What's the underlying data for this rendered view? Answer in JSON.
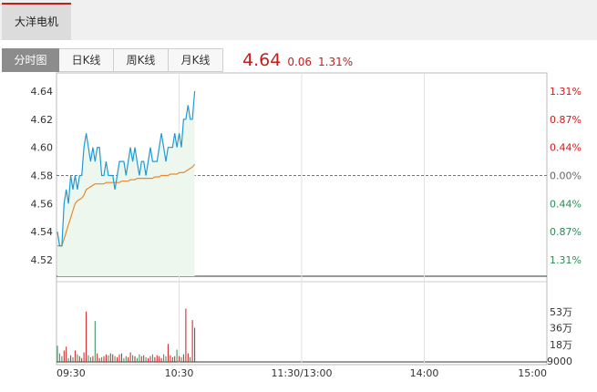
{
  "header": {
    "stock_name": "大洋电机"
  },
  "tabs": [
    {
      "label": "分时图",
      "active": true
    },
    {
      "label": "日K线",
      "active": false
    },
    {
      "label": "周K线",
      "active": false
    },
    {
      "label": "月K线",
      "active": false
    }
  ],
  "quote": {
    "price": "4.64",
    "change": "0.06",
    "change_pct": "1.31%"
  },
  "colors": {
    "up": "#c81c1c",
    "down": "#2e8b57",
    "price_line": "#1f9bd4",
    "avg_line": "#e8882c",
    "fill": "#eef7ee"
  },
  "chart_data": {
    "type": "line",
    "prev_close": 4.58,
    "time_labels": [
      "09:30",
      "10:30",
      "11:30/13:00",
      "14:00",
      "15:00"
    ],
    "price_ticks": [
      "4.64",
      "4.62",
      "4.60",
      "4.58",
      "4.56",
      "4.54",
      "4.52"
    ],
    "pct_ticks": [
      "1.31%",
      "0.87%",
      "0.44%",
      "0.00%",
      "0.44%",
      "0.87%",
      "1.31%"
    ],
    "price_range": [
      4.52,
      4.64
    ],
    "volume_ticks": [
      "53万",
      "36万",
      "18万",
      "9000"
    ],
    "volume_range": [
      0,
      710000
    ],
    "total_minutes": 240,
    "series": [
      {
        "name": "price",
        "values": [
          4.54,
          4.53,
          4.53,
          4.56,
          4.57,
          4.56,
          4.58,
          4.57,
          4.58,
          4.57,
          4.58,
          4.58,
          4.6,
          4.61,
          4.6,
          4.59,
          4.6,
          4.59,
          4.6,
          4.6,
          4.58,
          4.58,
          4.59,
          4.58,
          4.58,
          4.58,
          4.57,
          4.58,
          4.59,
          4.59,
          4.59,
          4.58,
          4.59,
          4.6,
          4.59,
          4.6,
          4.59,
          4.58,
          4.59,
          4.59,
          4.58,
          4.59,
          4.6,
          4.59,
          4.59,
          4.59,
          4.6,
          4.61,
          4.6,
          4.59,
          4.6,
          4.6,
          4.6,
          4.61,
          4.6,
          4.61,
          4.6,
          4.62,
          4.62,
          4.63,
          4.62,
          4.62,
          4.64
        ]
      },
      {
        "name": "avg",
        "values": [
          4.53,
          4.53,
          4.53,
          4.535,
          4.54,
          4.545,
          4.55,
          4.555,
          4.56,
          4.562,
          4.563,
          4.564,
          4.566,
          4.57,
          4.571,
          4.572,
          4.573,
          4.574,
          4.574,
          4.574,
          4.574,
          4.574,
          4.575,
          4.575,
          4.575,
          4.575,
          4.575,
          4.575,
          4.575,
          4.576,
          4.576,
          4.576,
          4.576,
          4.577,
          4.577,
          4.577,
          4.578,
          4.578,
          4.578,
          4.578,
          4.578,
          4.578,
          4.578,
          4.578,
          4.579,
          4.579,
          4.579,
          4.58,
          4.58,
          4.58,
          4.58,
          4.581,
          4.581,
          4.581,
          4.581,
          4.582,
          4.582,
          4.582,
          4.583,
          4.584,
          4.585,
          4.586,
          4.588
        ]
      }
    ],
    "volume": [
      170000,
      90000,
      60000,
      120000,
      160000,
      40000,
      70000,
      50000,
      120000,
      80000,
      60000,
      40000,
      100000,
      530000,
      70000,
      50000,
      60000,
      430000,
      90000,
      40000,
      50000,
      60000,
      80000,
      70000,
      90000,
      80000,
      60000,
      50000,
      80000,
      90000,
      40000,
      60000,
      50000,
      100000,
      70000,
      60000,
      40000,
      80000,
      60000,
      70000,
      50000,
      40000,
      60000,
      80000,
      50000,
      70000,
      60000,
      40000,
      80000,
      60000,
      190000,
      70000,
      50000,
      60000,
      130000,
      60000,
      50000,
      80000,
      560000,
      90000,
      50000,
      440000,
      360000
    ],
    "volume_up": [
      false,
      false,
      false,
      true,
      true,
      false,
      true,
      false,
      true,
      false,
      true,
      true,
      true,
      true,
      false,
      false,
      true,
      false,
      true,
      true,
      false,
      true,
      true,
      false,
      true,
      true,
      false,
      true,
      true,
      true,
      false,
      false,
      true,
      true,
      false,
      true,
      false,
      false,
      true,
      true,
      false,
      true,
      true,
      false,
      true,
      true,
      true,
      true,
      false,
      false,
      true,
      true,
      true,
      true,
      false,
      true,
      false,
      true,
      true,
      true,
      false,
      true,
      true
    ]
  }
}
